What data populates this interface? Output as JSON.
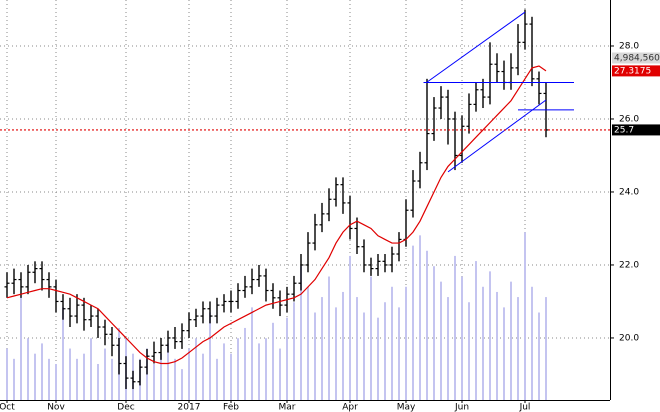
{
  "chart_data": {
    "type": "ohlc",
    "categories": [
      "Oct",
      null,
      null,
      null,
      null,
      null,
      null,
      "Nov",
      null,
      null,
      null,
      null,
      null,
      null,
      null,
      null,
      null,
      "Dec",
      null,
      null,
      null,
      null,
      null,
      null,
      null,
      null,
      "2017",
      null,
      null,
      null,
      null,
      null,
      "Feb",
      null,
      null,
      null,
      null,
      null,
      null,
      null,
      "Mar",
      null,
      null,
      null,
      null,
      null,
      null,
      null,
      null,
      "Apr",
      null,
      null,
      null,
      null,
      null,
      null,
      null,
      "May",
      null,
      null,
      null,
      null,
      null,
      null,
      null,
      "Jun",
      null,
      null,
      null,
      null,
      null,
      null,
      null,
      null,
      "Jul",
      null,
      null,
      null
    ],
    "open": [
      21.4,
      21.5,
      21.6,
      21.4,
      21.8,
      21.9,
      21.6,
      21.4,
      21.0,
      20.8,
      20.6,
      20.9,
      20.5,
      20.6,
      20.3,
      20.1,
      19.8,
      19.3,
      18.9,
      18.8,
      19.2,
      19.5,
      19.6,
      19.8,
      20.0,
      19.9,
      20.2,
      20.5,
      20.6,
      20.8,
      20.6,
      20.9,
      21.0,
      21.0,
      21.3,
      21.4,
      21.6,
      21.7,
      21.3,
      21.1,
      20.9,
      21.2,
      21.5,
      22.0,
      22.6,
      23.1,
      23.4,
      23.8,
      24.2,
      23.7,
      23.0,
      22.5,
      22.0,
      21.9,
      22.1,
      22.0,
      22.3,
      22.7,
      23.5,
      24.3,
      24.8,
      25.6,
      26.3,
      26.6,
      26.0,
      25.0,
      25.8,
      26.4,
      26.8,
      26.6,
      27.5,
      27.3,
      27.0,
      27.4,
      28.1,
      28.6,
      27.1,
      26.7
    ],
    "high": [
      21.8,
      21.9,
      21.8,
      22.0,
      22.1,
      22.1,
      21.8,
      21.6,
      21.2,
      21.1,
      21.2,
      21.1,
      20.9,
      20.8,
      20.5,
      20.3,
      20.0,
      19.5,
      19.1,
      19.4,
      19.7,
      19.9,
      20.0,
      20.2,
      20.3,
      20.4,
      20.7,
      20.8,
      21.0,
      21.0,
      21.1,
      21.2,
      21.3,
      21.5,
      21.7,
      21.9,
      22.0,
      21.9,
      21.5,
      21.3,
      21.4,
      21.7,
      22.3,
      22.9,
      23.4,
      23.7,
      24.1,
      24.4,
      24.4,
      23.9,
      23.3,
      22.7,
      22.2,
      22.3,
      22.3,
      22.5,
      22.9,
      23.8,
      24.6,
      25.1,
      27.1,
      26.6,
      26.9,
      26.8,
      26.2,
      26.1,
      26.7,
      27.0,
      27.1,
      28.1,
      27.8,
      27.6,
      27.8,
      28.6,
      29.0,
      28.8,
      27.3,
      27.0
    ],
    "low": [
      21.1,
      21.2,
      21.1,
      21.2,
      21.5,
      21.3,
      21.1,
      20.7,
      20.5,
      20.3,
      20.4,
      20.2,
      20.3,
      20.0,
      19.8,
      19.5,
      19.0,
      18.6,
      18.6,
      18.7,
      19.0,
      19.3,
      19.4,
      19.6,
      19.7,
      19.7,
      20.0,
      20.3,
      20.4,
      20.4,
      20.4,
      20.7,
      20.7,
      20.8,
      21.1,
      21.2,
      21.4,
      21.0,
      20.8,
      20.6,
      20.7,
      21.0,
      21.3,
      21.8,
      22.4,
      22.9,
      23.2,
      23.6,
      23.4,
      22.7,
      22.3,
      21.8,
      21.7,
      21.7,
      21.8,
      21.8,
      22.1,
      22.5,
      23.3,
      24.1,
      24.6,
      25.4,
      26.0,
      25.3,
      24.6,
      24.8,
      25.6,
      26.2,
      26.3,
      26.4,
      27.0,
      26.8,
      26.8,
      27.2,
      27.9,
      26.9,
      26.4,
      25.5
    ],
    "close": [
      21.5,
      21.6,
      21.4,
      21.8,
      21.9,
      21.6,
      21.4,
      21.0,
      20.8,
      20.6,
      20.9,
      20.5,
      20.6,
      20.3,
      20.1,
      19.8,
      19.3,
      18.9,
      18.8,
      19.2,
      19.5,
      19.6,
      19.8,
      20.0,
      19.9,
      20.2,
      20.5,
      20.6,
      20.8,
      20.6,
      20.9,
      21.0,
      21.0,
      21.3,
      21.4,
      21.6,
      21.7,
      21.3,
      21.1,
      20.9,
      21.2,
      21.5,
      22.0,
      22.6,
      23.1,
      23.4,
      23.8,
      24.2,
      23.7,
      23.0,
      22.5,
      22.0,
      21.9,
      22.1,
      22.0,
      22.3,
      22.7,
      23.5,
      24.3,
      24.8,
      25.6,
      26.3,
      26.6,
      26.0,
      25.0,
      25.8,
      26.4,
      26.8,
      26.6,
      27.5,
      27.3,
      27.0,
      27.4,
      28.1,
      28.6,
      27.1,
      26.7,
      25.7
    ],
    "volume": [
      750000,
      600000,
      1500000,
      900000,
      675000,
      825000,
      600000,
      525000,
      1350000,
      750000,
      600000,
      675000,
      900000,
      525000,
      750000,
      600000,
      1050000,
      900000,
      675000,
      600000,
      750000,
      525000,
      675000,
      825000,
      600000,
      450000,
      750000,
      900000,
      675000,
      1275000,
      600000,
      825000,
      675000,
      900000,
      1050000,
      1350000,
      825000,
      900000,
      1125000,
      750000,
      1200000,
      1425000,
      1950000,
      1650000,
      1275000,
      1500000,
      1800000,
      1350000,
      1575000,
      2100000,
      1500000,
      1275000,
      1800000,
      1200000,
      1425000,
      1650000,
      1350000,
      1650000,
      2250000,
      2400000,
      2175000,
      1950000,
      1725000,
      1500000,
      2100000,
      1800000,
      1425000,
      2025000,
      1650000,
      1875000,
      1575000,
      1350000,
      1725000,
      1500000,
      2445000,
      1650000,
      1275000,
      1500000
    ],
    "ma": {
      "color": "#e00000",
      "values": [
        21.1,
        21.15,
        21.2,
        21.25,
        21.3,
        21.35,
        21.35,
        21.3,
        21.25,
        21.2,
        21.1,
        21.0,
        20.9,
        20.8,
        20.6,
        20.4,
        20.2,
        20.0,
        19.8,
        19.6,
        19.45,
        19.35,
        19.3,
        19.3,
        19.35,
        19.45,
        19.6,
        19.75,
        19.9,
        20.0,
        20.15,
        20.3,
        20.4,
        20.5,
        20.6,
        20.7,
        20.8,
        20.9,
        20.95,
        21.0,
        21.05,
        21.1,
        21.2,
        21.4,
        21.6,
        21.9,
        22.2,
        22.6,
        22.9,
        23.1,
        23.2,
        23.1,
        23.0,
        22.8,
        22.7,
        22.6,
        22.6,
        22.7,
        22.9,
        23.2,
        23.6,
        24.0,
        24.4,
        24.7,
        24.9,
        25.1,
        25.3,
        25.5,
        25.7,
        25.9,
        26.1,
        26.3,
        26.5,
        26.8,
        27.1,
        27.4,
        27.45,
        27.3175
      ]
    },
    "bar_color": "#000000",
    "volume_color": "#c4c4f0",
    "last_price_color": "#e00000",
    "trendline_color": "#0000ff",
    "trendlines": [
      {
        "x": [
          60,
          74
        ],
        "y": [
          27.01,
          28.93
        ]
      },
      {
        "x": [
          63,
          77
        ],
        "y": [
          24.55,
          26.52
        ]
      },
      {
        "x": [
          59.5,
          81
        ],
        "y": [
          27.0,
          27.0
        ]
      },
      {
        "x": [
          73,
          81
        ],
        "y": [
          26.25,
          26.25
        ]
      }
    ],
    "volume_marker": {
      "value": 4984560,
      "label": "4,984,560"
    },
    "ylim": [
      18.3,
      29.26
    ],
    "yticks": [
      {
        "value": 20,
        "label": "20.0"
      },
      {
        "value": 22,
        "label": "22.0"
      },
      {
        "value": 24,
        "label": "24.0"
      },
      {
        "value": 26,
        "label": "26.0"
      },
      {
        "value": 28,
        "label": "28.0"
      }
    ],
    "y2lim": [
      0,
      5830000
    ],
    "grid": true
  }
}
